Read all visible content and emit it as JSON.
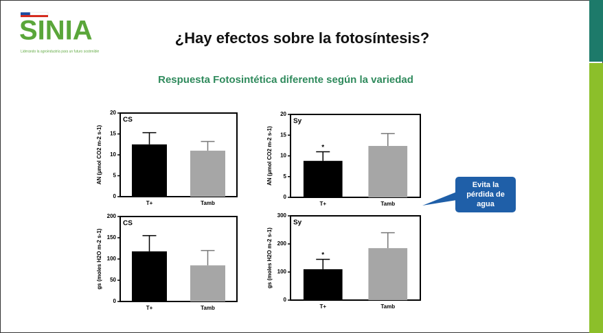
{
  "header": {
    "logo": "SINIA",
    "tagline": "Liderando la agroindustria para un futuro sostenible",
    "title": "¿Hay efectos sobre la fotosíntesis?",
    "subtitle": "Respuesta Fotosintética diferente según la variedad"
  },
  "callout": {
    "lines": [
      "Evita la",
      "pérdida de",
      "agua"
    ]
  },
  "chart_data": [
    {
      "type": "bar",
      "title": "CS",
      "ylabel": "AN (µmol CO2 m-2 s-1)",
      "categories": [
        "T+",
        "Tamb"
      ],
      "values": [
        12.5,
        11
      ],
      "errors": [
        2.8,
        2.2
      ],
      "colors": [
        "#000000",
        "#a6a6a6"
      ],
      "ylim": [
        0,
        20
      ],
      "yticks": [
        0,
        5,
        10,
        15,
        20
      ]
    },
    {
      "type": "bar",
      "title": "Sy",
      "ylabel": "AN (µmol CO2 m-2 s-1)",
      "categories": [
        "T+",
        "Tamb"
      ],
      "values": [
        8.8,
        12.4
      ],
      "errors": [
        2.2,
        3.0
      ],
      "colors": [
        "#000000",
        "#a6a6a6"
      ],
      "ylim": [
        0,
        20
      ],
      "yticks": [
        0,
        5,
        10,
        15,
        20
      ],
      "annotation": "*"
    },
    {
      "type": "bar",
      "title": "CS",
      "ylabel": "gs (moles H2O m-2 s-1)",
      "categories": [
        "T+",
        "Tamb"
      ],
      "values": [
        118,
        85
      ],
      "errors": [
        37,
        35
      ],
      "colors": [
        "#000000",
        "#a6a6a6"
      ],
      "ylim": [
        0,
        200
      ],
      "yticks": [
        0,
        50,
        100,
        150,
        200
      ]
    },
    {
      "type": "bar",
      "title": "Sy",
      "ylabel": "gs (moles H2O m-2 s-1)",
      "categories": [
        "T+",
        "Tamb"
      ],
      "values": [
        110,
        185
      ],
      "errors": [
        35,
        55
      ],
      "colors": [
        "#000000",
        "#a6a6a6"
      ],
      "ylim": [
        0,
        300
      ],
      "yticks": [
        0,
        100,
        200,
        300
      ],
      "annotation": "*"
    }
  ]
}
